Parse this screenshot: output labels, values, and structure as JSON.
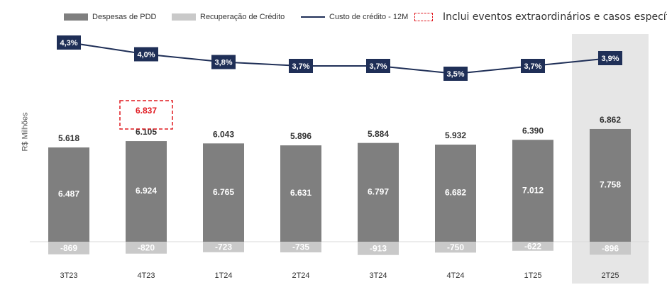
{
  "legend": {
    "pdd": "Despesas de PDD",
    "recovery": "Recuperação de Crédito",
    "cost": "Custo de crédito - 12M",
    "extraordinary": "Inclui eventos extraordinários e casos específicos"
  },
  "colors": {
    "pdd": "#7f7f7f",
    "recovery": "#c9c9c9",
    "line": "#1f2f57",
    "highlight": "#e6e6e6",
    "extra": "#e0181f"
  },
  "chart_data": {
    "type": "bar",
    "ylabel": "R$ Milhões",
    "categories": [
      "3T23",
      "4T23",
      "1T24",
      "2T24",
      "3T24",
      "4T24",
      "1T25",
      "2T25"
    ],
    "series": [
      {
        "name": "Despesas de PDD",
        "values": [
          6487,
          6924,
          6765,
          6631,
          6797,
          6682,
          7012,
          7758
        ],
        "labels": [
          "6.487",
          "6.924",
          "6.765",
          "6.631",
          "6.797",
          "6.682",
          "7.012",
          "7.758"
        ]
      },
      {
        "name": "Recuperação de Crédito",
        "values": [
          -869,
          -820,
          -723,
          -735,
          -913,
          -750,
          -622,
          -896
        ],
        "labels": [
          "-869",
          "-820",
          "-723",
          "-735",
          "-913",
          "-750",
          "-622",
          "-896"
        ]
      },
      {
        "name": "Custo de crédito - 12M",
        "values": [
          4.3,
          4.0,
          3.8,
          3.7,
          3.7,
          3.5,
          3.7,
          3.9
        ],
        "labels": [
          "4,3%",
          "4,0%",
          "3,8%",
          "3,7%",
          "3,7%",
          "3,5%",
          "3,7%",
          "3,9%"
        ]
      }
    ],
    "totals": [
      5618,
      6105,
      6043,
      5896,
      5884,
      5932,
      6390,
      6862
    ],
    "total_labels": [
      "5.618",
      "6.105",
      "6.043",
      "5.896",
      "5.884",
      "5.932",
      "6.390",
      "6.862"
    ],
    "extraordinary": {
      "category": "4T23",
      "label": "6.837"
    },
    "highlighted_category": "2T25"
  }
}
